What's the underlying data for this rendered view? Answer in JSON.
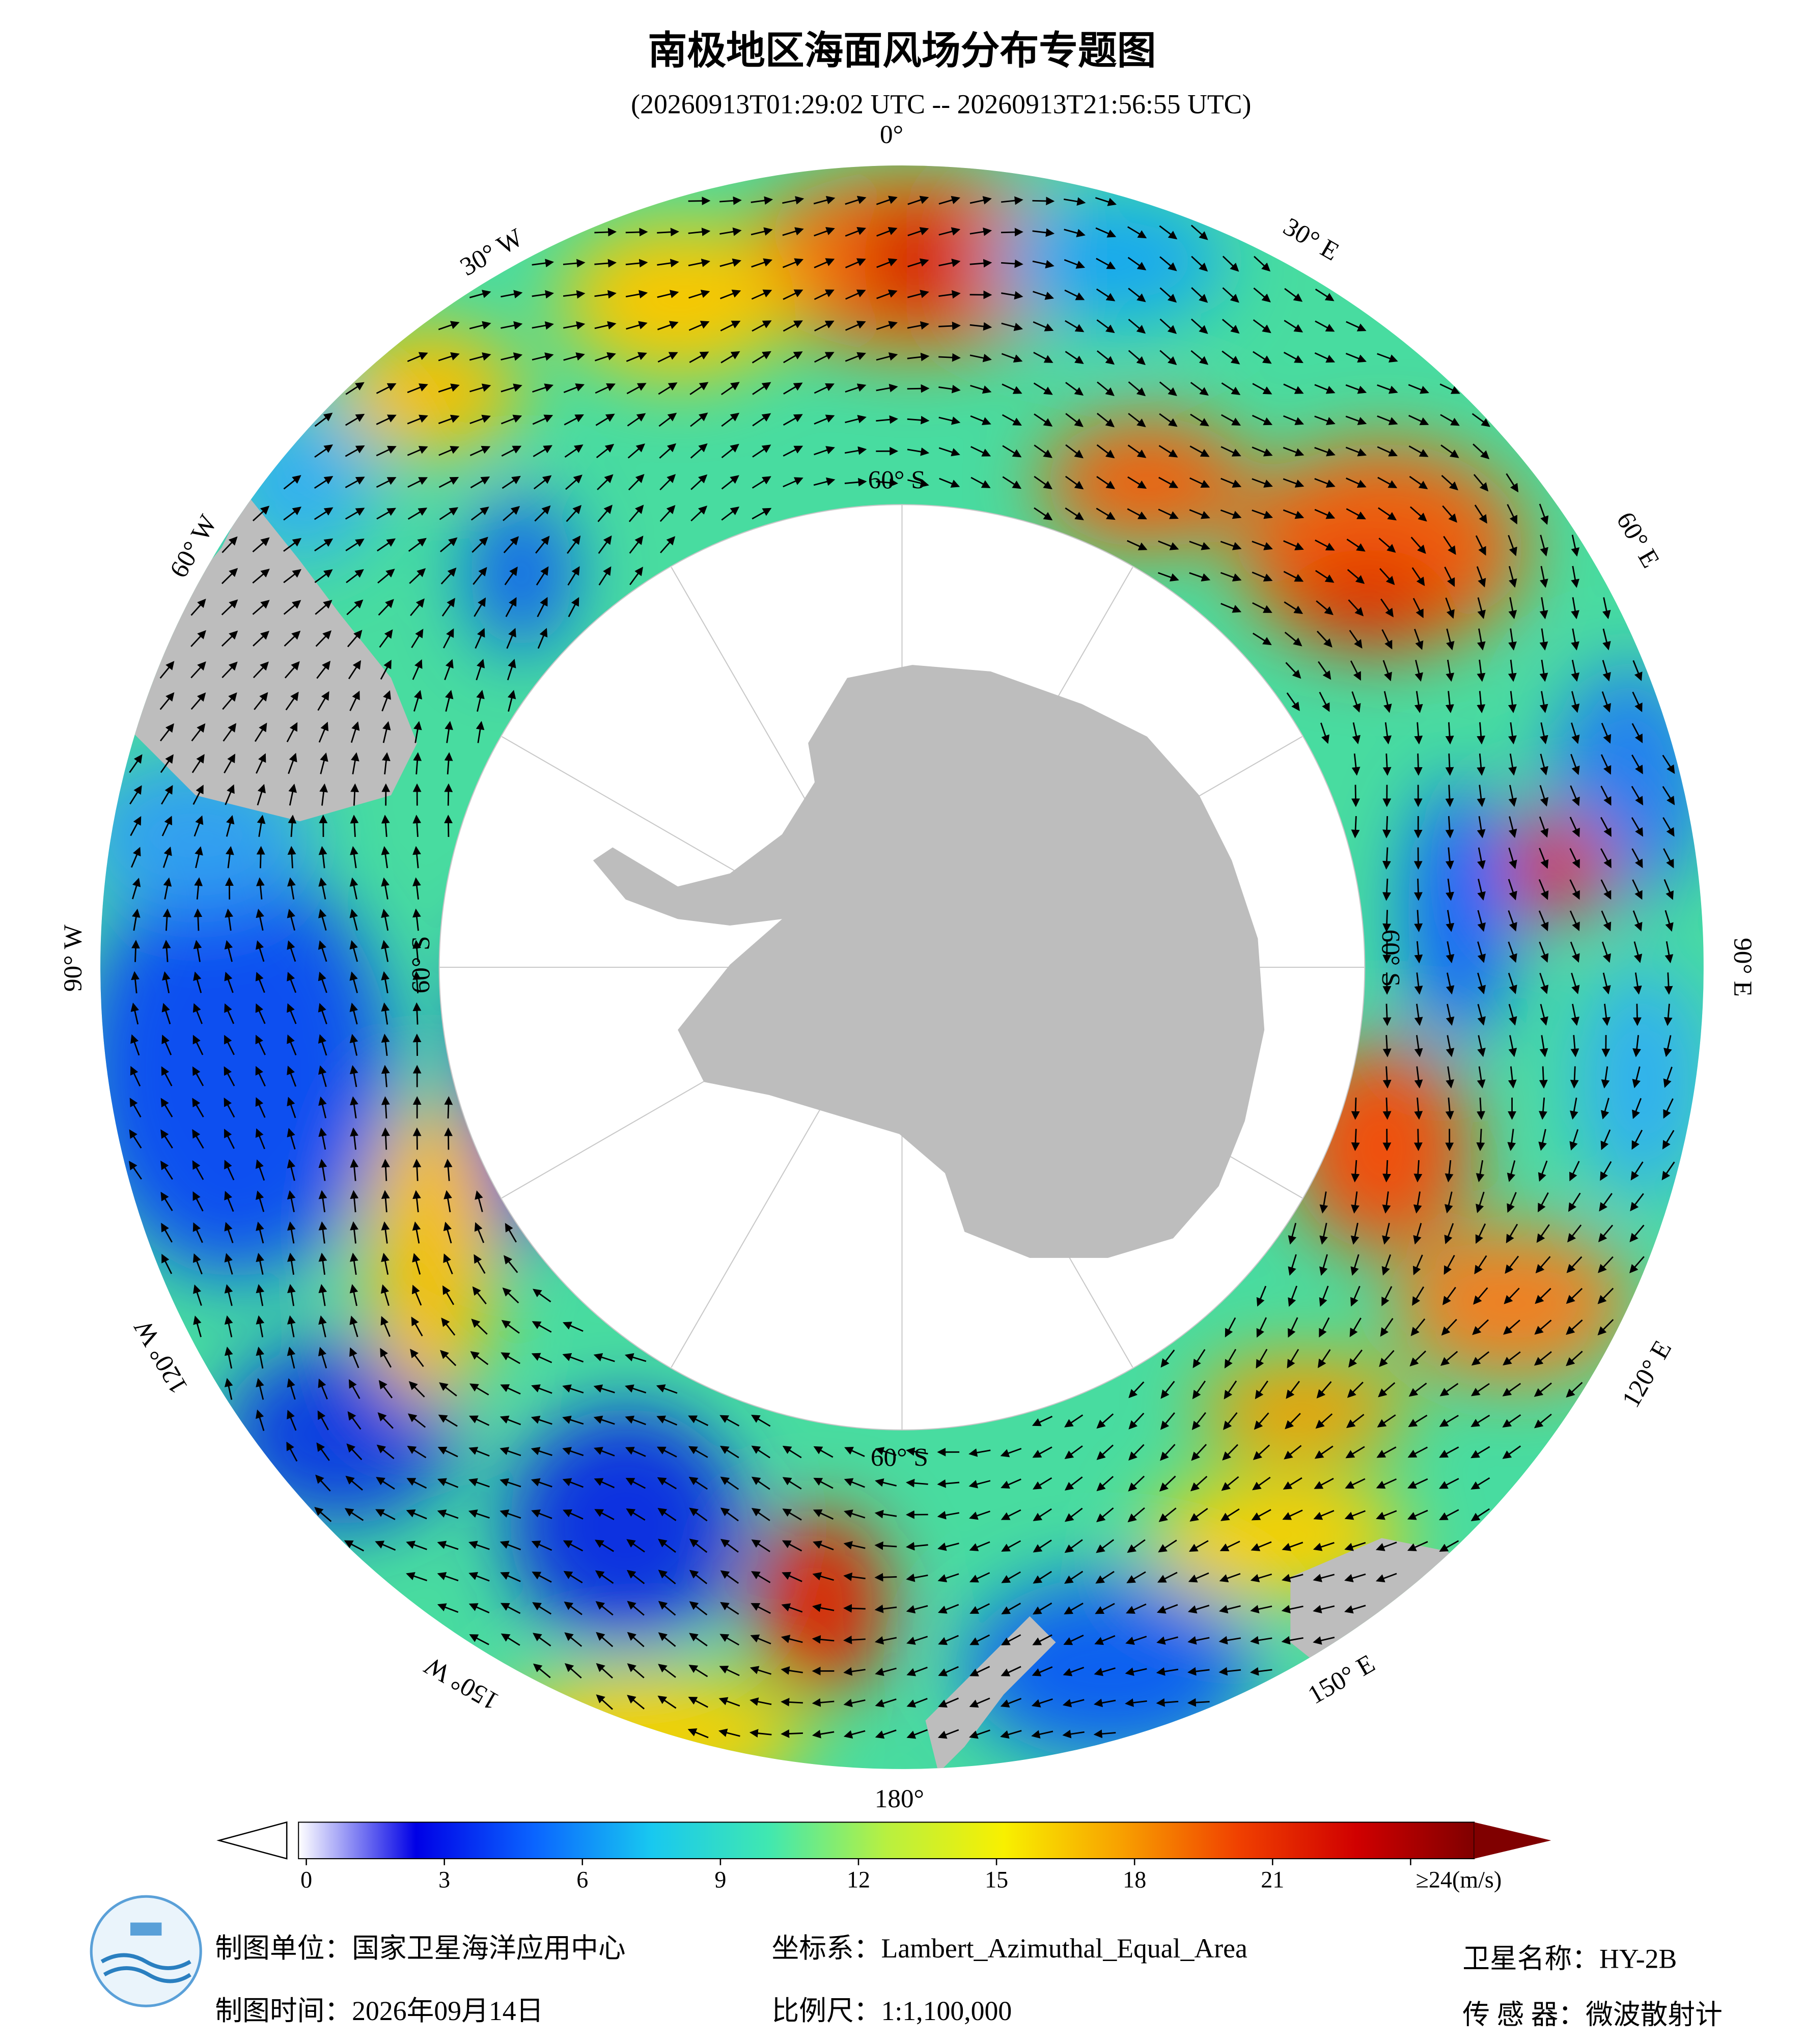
{
  "title": "南极地区海面风场分布专题图",
  "subtitle": "(20260913T01:29:02 UTC -- 20260913T21:56:55 UTC)",
  "graticule_labels": [
    "0°",
    "30° E",
    "60° E",
    "90° E",
    "120° E",
    "150° E",
    "180°",
    "150° W",
    "120° W",
    "90° W",
    "60° W",
    "30° W",
    "60° S",
    "60° S",
    "60° S",
    "60° S"
  ],
  "colorbar": {
    "colormap": [
      "#ffffff",
      "#0000e6",
      "#0a64ff",
      "#18c8f0",
      "#40e8b0",
      "#b8f040",
      "#f8f000",
      "#f8a000",
      "#f04000",
      "#d00000",
      "#800000"
    ],
    "ticks": [
      0,
      3,
      6,
      9,
      12,
      15,
      18,
      21,
      {
        "value": 24,
        "label": "≥24(m/s)"
      }
    ]
  },
  "footer": {
    "producer": "制图单位：国家卫星海洋应用中心",
    "date": "制图时间：2026年09月14日",
    "projection": "坐标系：Lambert_Azimuthal_Equal_Area",
    "scale": "比例尺：1:1,100,000",
    "satellite": "卫星名称：HY-2B",
    "sensor": "传 感 器：微波散射计"
  }
}
